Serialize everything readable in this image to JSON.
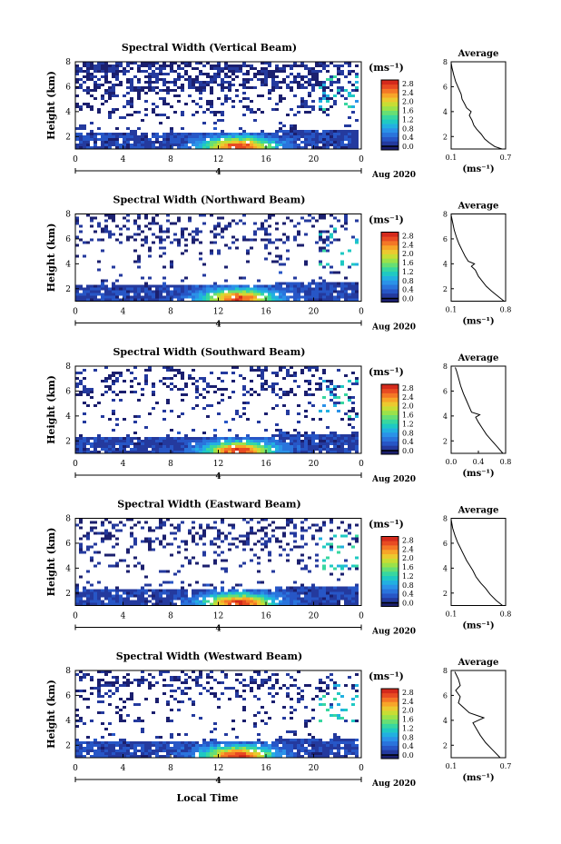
{
  "figure": {
    "time_label": "Local Time",
    "date_label": "Aug 2020",
    "date_mark": "4",
    "height_axis_label": "Height (km)",
    "unit_label": "(ms⁻¹)",
    "average_title": "Average"
  },
  "colors": {
    "colorbar": [
      "#1b1f6e",
      "#243a9e",
      "#2756c6",
      "#2a74dc",
      "#2b92e8",
      "#22b0e0",
      "#1fc9c3",
      "#38d7a0",
      "#67df74",
      "#9be24a",
      "#c8dd34",
      "#ecc92f",
      "#f7a529",
      "#f47726",
      "#e84b22",
      "#d42a1c"
    ],
    "background": "#ffffff",
    "dominant": "#3a449e"
  },
  "chart_data": [
    {
      "type": "heatmap",
      "title": "Spectral Width (Vertical Beam)",
      "xlabel": "Local Time",
      "ylabel": "Height (km)",
      "x_ticks": [
        "0",
        "4",
        "8",
        "12",
        "16",
        "20",
        "0"
      ],
      "y_ticks": [
        "2",
        "4",
        "6",
        "8"
      ],
      "ylim": [
        1,
        8
      ],
      "colorbar": {
        "unit": "(ms⁻¹)",
        "ticks": [
          "2.8",
          "2.4",
          "2.0",
          "1.6",
          "1.2",
          "0.8",
          "0.4",
          "0.0"
        ]
      },
      "average": {
        "title": "Average",
        "xlabel": "(ms⁻¹)",
        "x_ticks": [
          "0.1",
          "0.7"
        ],
        "xlim": [
          0.1,
          0.7
        ],
        "profile": [
          [
            0.66,
            1.0
          ],
          [
            0.58,
            1.2
          ],
          [
            0.52,
            1.5
          ],
          [
            0.47,
            1.8
          ],
          [
            0.43,
            2.2
          ],
          [
            0.38,
            2.6
          ],
          [
            0.35,
            2.9
          ],
          [
            0.33,
            3.3
          ],
          [
            0.3,
            3.7
          ],
          [
            0.32,
            4.0
          ],
          [
            0.27,
            4.3
          ],
          [
            0.25,
            4.6
          ],
          [
            0.22,
            5.0
          ],
          [
            0.21,
            5.4
          ],
          [
            0.18,
            5.9
          ],
          [
            0.15,
            6.4
          ],
          [
            0.13,
            6.9
          ],
          [
            0.11,
            7.5
          ],
          [
            0.1,
            7.9
          ]
        ]
      }
    },
    {
      "type": "heatmap",
      "title": "Spectral Width (Northward Beam)",
      "xlabel": "Local Time",
      "ylabel": "Height (km)",
      "x_ticks": [
        "0",
        "4",
        "8",
        "12",
        "16",
        "20",
        "0"
      ],
      "y_ticks": [
        "2",
        "4",
        "6",
        "8"
      ],
      "ylim": [
        1,
        8
      ],
      "colorbar": {
        "unit": "(ms⁻¹)",
        "ticks": [
          "2.8",
          "2.4",
          "2.0",
          "1.6",
          "1.2",
          "0.8",
          "0.4",
          "0.0"
        ]
      },
      "average": {
        "title": "Average",
        "xlabel": "(ms⁻¹)",
        "x_ticks": [
          "0.1",
          "0.8"
        ],
        "xlim": [
          0.1,
          0.8
        ],
        "profile": [
          [
            0.78,
            1.0
          ],
          [
            0.7,
            1.4
          ],
          [
            0.62,
            1.8
          ],
          [
            0.55,
            2.2
          ],
          [
            0.5,
            2.6
          ],
          [
            0.45,
            3.0
          ],
          [
            0.41,
            3.5
          ],
          [
            0.36,
            3.8
          ],
          [
            0.4,
            4.0
          ],
          [
            0.32,
            4.2
          ],
          [
            0.28,
            4.6
          ],
          [
            0.24,
            5.1
          ],
          [
            0.2,
            5.6
          ],
          [
            0.17,
            6.1
          ],
          [
            0.14,
            6.7
          ],
          [
            0.12,
            7.3
          ],
          [
            0.1,
            7.9
          ]
        ]
      }
    },
    {
      "type": "heatmap",
      "title": "Spectral Width (Southward Beam)",
      "xlabel": "Local Time",
      "ylabel": "Height (km)",
      "x_ticks": [
        "0",
        "4",
        "8",
        "12",
        "16",
        "20",
        "0"
      ],
      "y_ticks": [
        "2",
        "4",
        "6",
        "8"
      ],
      "ylim": [
        1,
        8
      ],
      "colorbar": {
        "unit": "(ms⁻¹)",
        "ticks": [
          "2.8",
          "2.4",
          "2.0",
          "1.6",
          "1.2",
          "0.8",
          "0.4",
          "0.0"
        ]
      },
      "average": {
        "title": "Average",
        "xlabel": "(ms⁻¹)",
        "x_ticks": [
          "0.0",
          "0.4",
          "0.8"
        ],
        "xlim": [
          0.0,
          0.8
        ],
        "profile": [
          [
            0.76,
            1.0
          ],
          [
            0.68,
            1.5
          ],
          [
            0.6,
            2.0
          ],
          [
            0.52,
            2.5
          ],
          [
            0.46,
            3.0
          ],
          [
            0.4,
            3.5
          ],
          [
            0.36,
            3.9
          ],
          [
            0.42,
            4.1
          ],
          [
            0.3,
            4.3
          ],
          [
            0.26,
            4.8
          ],
          [
            0.22,
            5.3
          ],
          [
            0.18,
            5.8
          ],
          [
            0.14,
            6.4
          ],
          [
            0.11,
            7.0
          ],
          [
            0.08,
            7.6
          ],
          [
            0.06,
            7.9
          ]
        ]
      }
    },
    {
      "type": "heatmap",
      "title": "Spectral Width (Eastward Beam)",
      "xlabel": "Local Time",
      "ylabel": "Height (km)",
      "x_ticks": [
        "0",
        "4",
        "8",
        "12",
        "16",
        "20",
        "0"
      ],
      "y_ticks": [
        "2",
        "4",
        "6",
        "8"
      ],
      "ylim": [
        1,
        8
      ],
      "colorbar": {
        "unit": "(ms⁻¹)",
        "ticks": [
          "2.8",
          "2.4",
          "2.0",
          "1.6",
          "1.2",
          "0.8",
          "0.4",
          "0.0"
        ]
      },
      "average": {
        "title": "Average",
        "xlabel": "(ms⁻¹)",
        "x_ticks": [
          "0.1",
          "0.8"
        ],
        "xlim": [
          0.1,
          0.8
        ],
        "profile": [
          [
            0.76,
            1.0
          ],
          [
            0.68,
            1.4
          ],
          [
            0.6,
            1.9
          ],
          [
            0.54,
            2.4
          ],
          [
            0.48,
            2.8
          ],
          [
            0.42,
            3.3
          ],
          [
            0.38,
            3.8
          ],
          [
            0.34,
            4.2
          ],
          [
            0.3,
            4.6
          ],
          [
            0.26,
            5.1
          ],
          [
            0.22,
            5.6
          ],
          [
            0.18,
            6.1
          ],
          [
            0.15,
            6.6
          ],
          [
            0.12,
            7.2
          ],
          [
            0.1,
            7.9
          ]
        ]
      }
    },
    {
      "type": "heatmap",
      "title": "Spectral Width (Westward Beam)",
      "xlabel": "Local Time",
      "ylabel": "Height (km)",
      "x_ticks": [
        "0",
        "4",
        "8",
        "12",
        "16",
        "20",
        "0"
      ],
      "y_ticks": [
        "2",
        "4",
        "6",
        "8"
      ],
      "ylim": [
        1,
        8
      ],
      "colorbar": {
        "unit": "(ms⁻¹)",
        "ticks": [
          "2.8",
          "2.4",
          "2.0",
          "1.6",
          "1.2",
          "0.8",
          "0.4",
          "0.0"
        ]
      },
      "average": {
        "title": "Average",
        "xlabel": "(ms⁻¹)",
        "x_ticks": [
          "0.1",
          "0.7"
        ],
        "xlim": [
          0.1,
          0.7
        ],
        "profile": [
          [
            0.64,
            1.0
          ],
          [
            0.56,
            1.6
          ],
          [
            0.48,
            2.2
          ],
          [
            0.42,
            2.8
          ],
          [
            0.38,
            3.3
          ],
          [
            0.34,
            3.8
          ],
          [
            0.46,
            4.2
          ],
          [
            0.3,
            4.6
          ],
          [
            0.24,
            5.0
          ],
          [
            0.18,
            5.4
          ],
          [
            0.2,
            5.9
          ],
          [
            0.15,
            6.4
          ],
          [
            0.2,
            6.8
          ],
          [
            0.18,
            7.3
          ],
          [
            0.14,
            7.9
          ]
        ]
      }
    }
  ]
}
